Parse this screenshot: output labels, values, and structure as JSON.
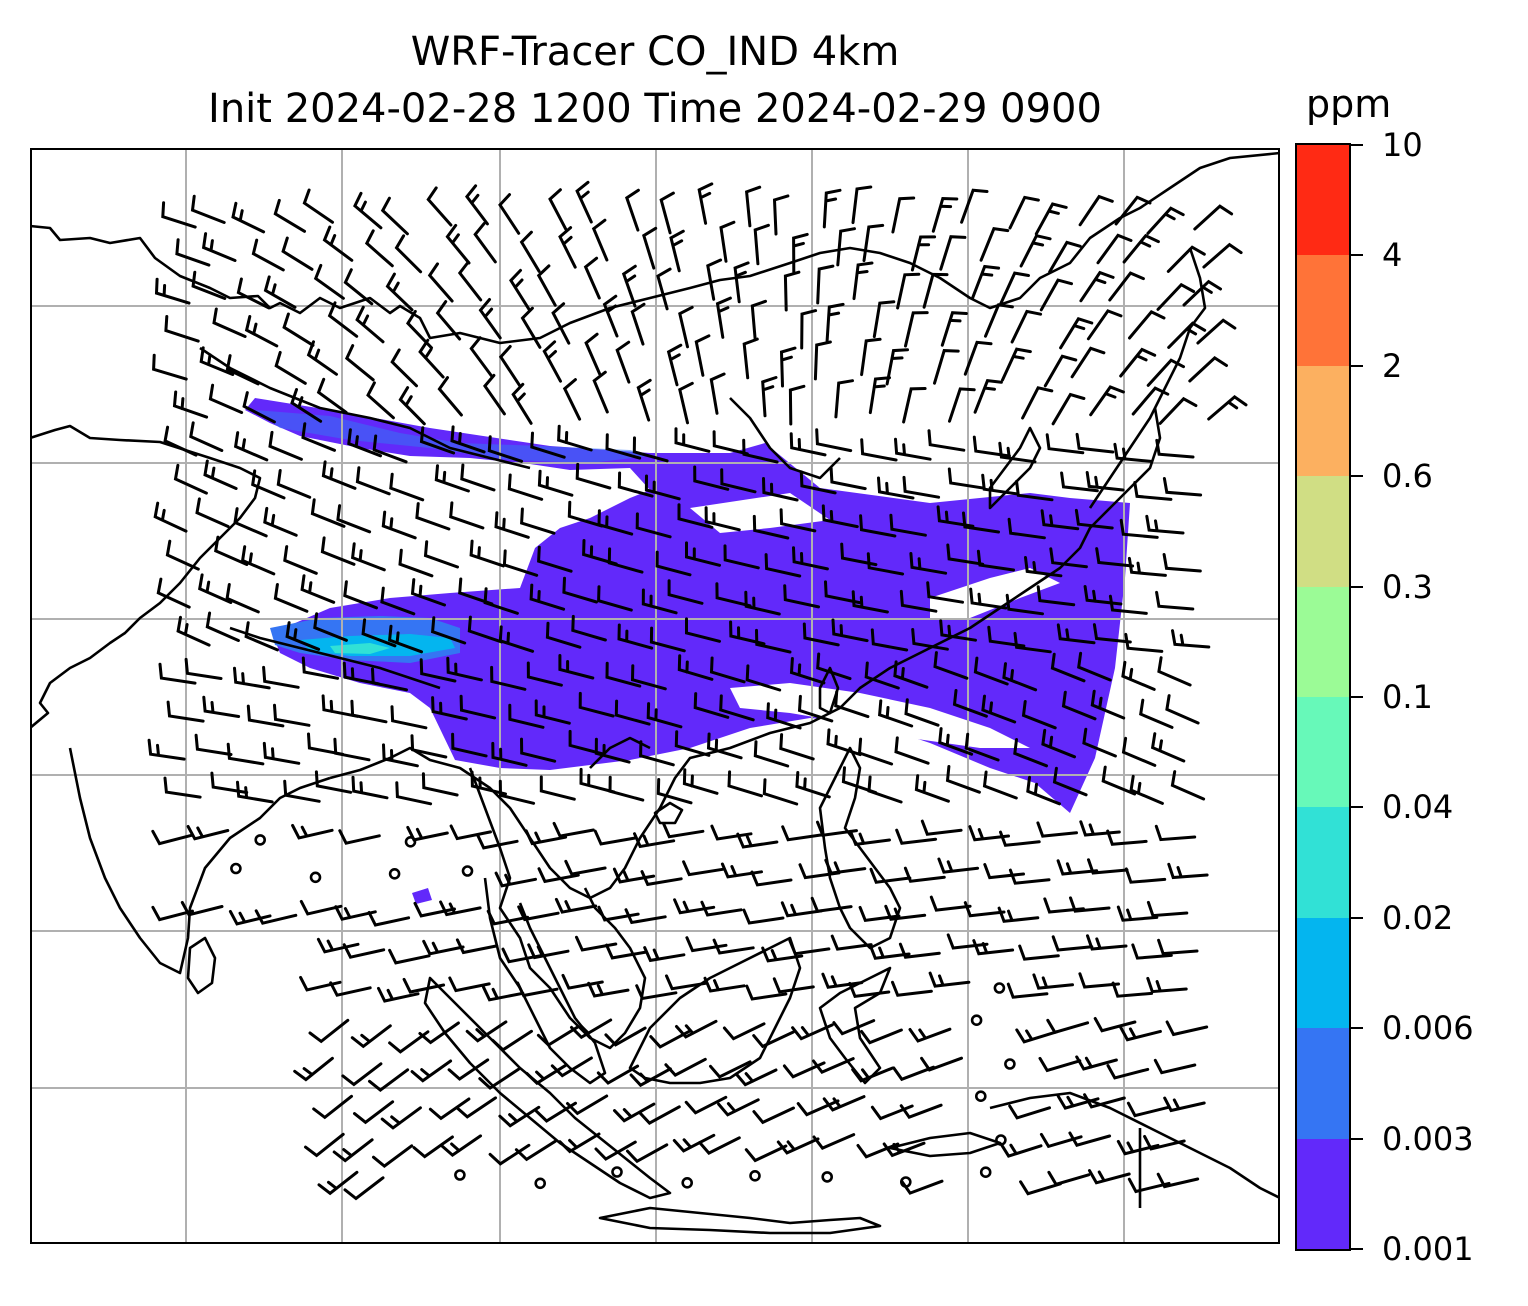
{
  "title_line1": "WRF-Tracer CO_IND 4km",
  "title_line2": "Init 2024-02-28 1200 Time 2024-02-29 0900",
  "colorbar": {
    "unit": "ppm",
    "ticks": [
      "0.001",
      "0.003",
      "0.006",
      "0.02",
      "0.04",
      "0.1",
      "0.3",
      "0.6",
      "2",
      "4",
      "10"
    ],
    "colors": [
      "#6229fa",
      "#3575f3",
      "#04b5ef",
      "#31e1d6",
      "#67f9b9",
      "#9bfb96",
      "#d0de84",
      "#fcb060",
      "#ff7338",
      "#ff2a14"
    ]
  },
  "map": {
    "grid_lines": true,
    "tracer_plume_color": "#6229fa",
    "plume_core_colors": [
      "#3575f3",
      "#04b5ef",
      "#31e1d6"
    ],
    "wind_barb_color": "#000000",
    "coastline_color": "#000000",
    "grid_color": "#b0b0b0"
  }
}
